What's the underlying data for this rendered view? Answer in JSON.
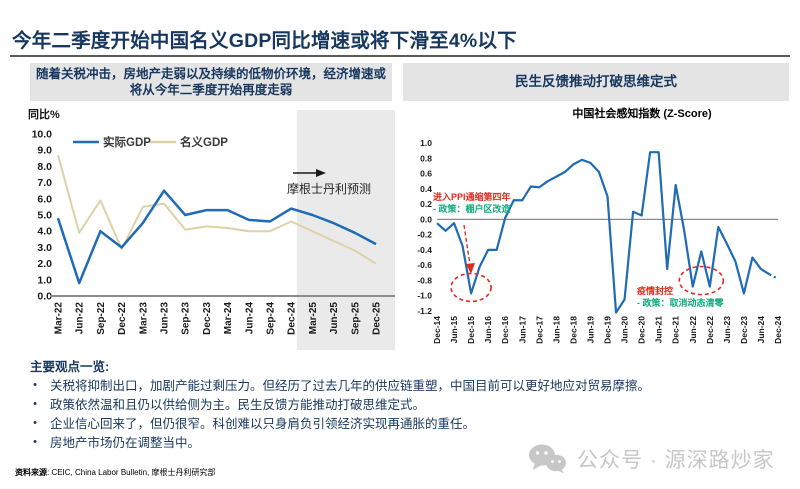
{
  "page": {
    "title": "今年二季度开始中国名义GDP同比增速或将下滑至4%以下",
    "title_color": "#17375E",
    "source_label": "资料来源",
    "source_rest": ": CEIC, China Labor Bulletin, 摩根士丹利研究部",
    "watermark_text": "公众号 · 源深路炒家"
  },
  "left_panel": {
    "header": "随着关税冲击，房地产走弱以及持续的低物价环境，经济增速或将从今年二季度开始再度走弱"
  },
  "right_panel": {
    "header": "民生反馈推动打破思维定式"
  },
  "opinions": {
    "header": "主要观点一览:",
    "items": [
      "关税将抑制出口，加剧产能过剩压力。但经历了过去几年的供应链重塑，中国目前可以更好地应对贸易摩擦。",
      "政策依然温和且仍以供给侧为主。民生反馈方能推动打破思维定式。",
      "企业信心回来了，但仍很窄。科创难以只身肩负引领经济实现再通胀的重任。",
      "房地产市场仍在调整当中。"
    ]
  },
  "chart_data": [
    {
      "type": "line",
      "title": "",
      "ylabel": "同比%",
      "ylim": [
        0,
        10
      ],
      "ytick_step": 1,
      "grid": false,
      "legend_position": "top-left",
      "categories": [
        "Mar-22",
        "Jun-22",
        "Sep-22",
        "Dec-22",
        "Mar-23",
        "Jun-23",
        "Sep-23",
        "Dec-23",
        "Mar-24",
        "Jun-24",
        "Sep-24",
        "Dec-24",
        "Mar-25",
        "Jun-25",
        "Sep-25",
        "Dec-25"
      ],
      "series": [
        {
          "name": "实际GDP",
          "color": "#1F6CB5",
          "values": [
            4.8,
            0.8,
            4.0,
            3.0,
            4.5,
            6.5,
            5.0,
            5.3,
            5.3,
            4.7,
            4.6,
            5.4,
            5.0,
            4.5,
            3.9,
            3.2
          ]
        },
        {
          "name": "名义GDP",
          "color": "#DCD2A8",
          "values": [
            8.7,
            3.9,
            5.9,
            2.9,
            5.5,
            5.7,
            4.1,
            4.3,
            4.2,
            4.0,
            4.0,
            4.6,
            4.0,
            3.4,
            2.8,
            2.0
          ]
        }
      ],
      "forecast": {
        "from_category": "Mar-25",
        "band_color": "#EAEAEA",
        "label": "摩根士丹利预测"
      }
    },
    {
      "type": "line",
      "title": "中国社会感知指数 (Z-Score)",
      "ylim": [
        -1.2,
        1.0
      ],
      "ytick_step": 0.2,
      "zero_line": true,
      "line_color": "#1F6CB5",
      "dashed_from_index": 39,
      "x": [
        "Dec-14",
        "Mar-15",
        "Jun-15",
        "Sep-15",
        "Dec-15",
        "Mar-16",
        "Jun-16",
        "Sep-16",
        "Dec-16",
        "Mar-17",
        "Jun-17",
        "Sep-17",
        "Dec-17",
        "Mar-18",
        "Jun-18",
        "Sep-18",
        "Dec-18",
        "Mar-19",
        "Jun-19",
        "Sep-19",
        "Dec-19",
        "Mar-20",
        "Jun-20",
        "Sep-20",
        "Dec-20",
        "Mar-21",
        "Jun-21",
        "Sep-21",
        "Dec-21",
        "Mar-22",
        "Jun-22",
        "Sep-22",
        "Dec-22",
        "Mar-23",
        "Jun-23",
        "Sep-23",
        "Dec-23",
        "Mar-24",
        "Jun-24",
        "Sep-24",
        "Dec-24"
      ],
      "values": [
        -0.05,
        -0.15,
        -0.05,
        -0.35,
        -0.97,
        -0.62,
        -0.4,
        -0.4,
        0.02,
        0.25,
        0.25,
        0.43,
        0.42,
        0.5,
        0.56,
        0.62,
        0.72,
        0.78,
        0.74,
        0.62,
        0.3,
        -1.22,
        -1.05,
        0.1,
        0.05,
        0.88,
        0.88,
        -0.65,
        0.45,
        -0.15,
        -0.88,
        -0.42,
        -0.88,
        -0.1,
        -0.32,
        -0.55,
        -0.97,
        -0.5,
        -0.65,
        -0.72,
        -0.78
      ],
      "tick_every": 2,
      "highlight_color": "#E02B20",
      "annotations": [
        {
          "anchor": "Dec-15",
          "lines": [
            {
              "text": "进入PPI通缩第四年",
              "color": "#E02B20"
            },
            {
              "text": "- 政策：棚户区改造",
              "color": "#0FA97B"
            }
          ]
        },
        {
          "anchor": "Dec-22",
          "lines": [
            {
              "text": "疫情封控",
              "color": "#E02B20"
            },
            {
              "text": "- 政策：取消动态清零",
              "color": "#0FA97B"
            }
          ]
        }
      ],
      "highlight_ellipses": [
        {
          "from": "Dec-15",
          "to": "Dec-15"
        },
        {
          "from": "Jun-22",
          "to": "Dec-22"
        }
      ]
    }
  ]
}
